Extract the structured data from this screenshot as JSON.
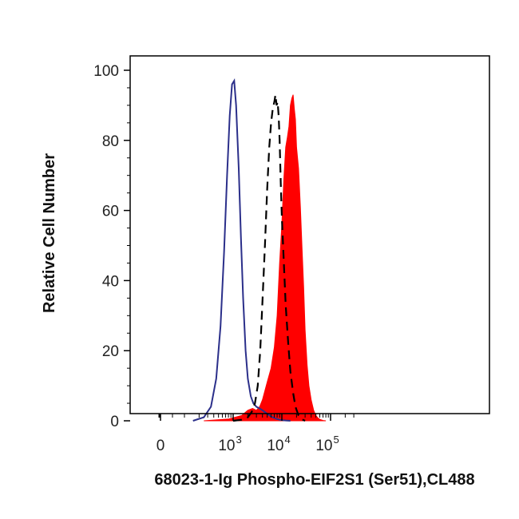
{
  "chart_data": {
    "type": "area",
    "title": "",
    "xlabel": "68023-1-Ig Phospho-EIF2S1 (Ser51),CL488",
    "ylabel": "Relative Cell Number",
    "x_scale": "biexponential",
    "xlim": [
      -150,
      300000
    ],
    "ylim": [
      0,
      100
    ],
    "grid": false,
    "legend": "none",
    "x_ticks": [
      {
        "value": 0,
        "label": "0",
        "exponent": ""
      },
      {
        "value": 1000,
        "label": "10",
        "exponent": "3"
      },
      {
        "value": 10000,
        "label": "10",
        "exponent": "4"
      },
      {
        "value": 100000,
        "label": "10",
        "exponent": "5"
      }
    ],
    "y_ticks": [
      "0",
      "20",
      "40",
      "60",
      "80",
      "100"
    ],
    "series": [
      {
        "style": "solid-outline",
        "color": "#2b2f8a",
        "x": [
          150,
          250,
          350,
          450,
          550,
          650,
          750,
          850,
          950,
          1050,
          1150,
          1300,
          1450,
          1600,
          1800,
          2000,
          2300,
          2600,
          3000,
          3500,
          4000,
          5000,
          6000,
          7000,
          8000,
          9000,
          10000,
          12000,
          15000
        ],
        "y": [
          0,
          1,
          4,
          12,
          27,
          48,
          70,
          87,
          96,
          97,
          90,
          72,
          52,
          35,
          20,
          12,
          7,
          5,
          4,
          3.5,
          3,
          2,
          1.2,
          0.8,
          0.5,
          0.3,
          0.2,
          0.1,
          0
        ]
      },
      {
        "style": "dashed",
        "color": "#000000",
        "x": [
          1000,
          1500,
          2000,
          2400,
          2800,
          3200,
          3600,
          4000,
          4500,
          5000,
          5500,
          6000,
          6500,
          7000,
          7400,
          7800,
          8200,
          8600,
          9000,
          9500,
          10000,
          11000,
          12000,
          13500,
          15000,
          17000,
          19000,
          22000,
          25000,
          30000
        ],
        "y": [
          0,
          0.3,
          1,
          2.5,
          5,
          10,
          20,
          34,
          50,
          66,
          78,
          85,
          89,
          91,
          93,
          90,
          91,
          87,
          80,
          68,
          58,
          45,
          33,
          22,
          14,
          8,
          4,
          1.5,
          0.5,
          0
        ]
      },
      {
        "style": "filled",
        "color": "#ff0000",
        "x": [
          250,
          800,
          1500,
          2000,
          2500,
          3000,
          3500,
          4000,
          5000,
          6000,
          7000,
          8000,
          9000,
          10000,
          11000,
          12000,
          13000,
          14000,
          15000,
          16000,
          17000,
          18000,
          19000,
          20000,
          22000,
          24000,
          26000,
          28000,
          30000,
          33000,
          36000,
          40000,
          45000,
          50000,
          55000,
          60000,
          70000,
          80000
        ],
        "y": [
          0,
          0.5,
          1.5,
          3,
          3.5,
          3,
          4,
          6,
          11,
          15,
          21,
          30,
          45,
          56,
          69,
          78,
          81,
          84,
          90,
          92,
          93,
          89,
          86,
          78,
          72,
          61,
          49,
          38,
          26,
          16,
          10,
          6,
          3,
          1.5,
          0.8,
          0.4,
          0.1,
          0
        ]
      }
    ]
  }
}
